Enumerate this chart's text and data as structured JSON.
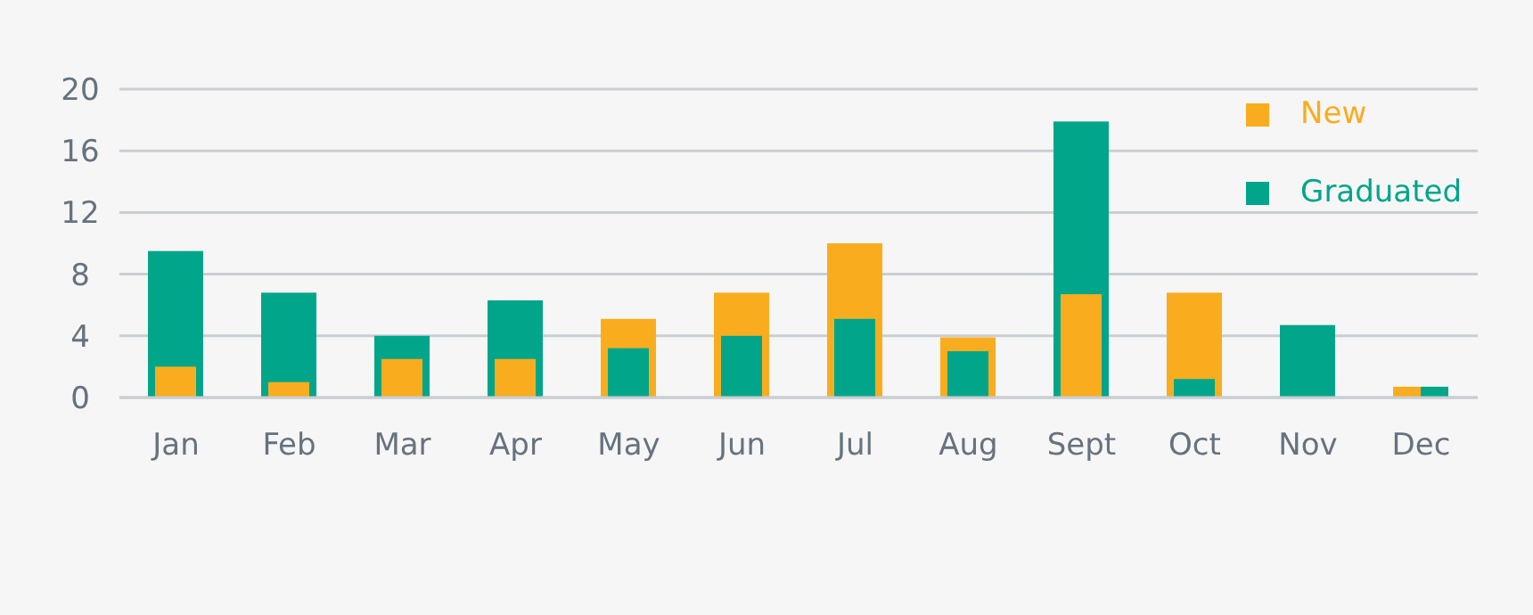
{
  "chart_data": {
    "type": "bar",
    "categories": [
      "Jan",
      "Feb",
      "Mar",
      "Apr",
      "May",
      "Jun",
      "Jul",
      "Aug",
      "Sept",
      "Oct",
      "Nov",
      "Dec"
    ],
    "series": [
      {
        "name": "New",
        "color": "#f9ad1e",
        "values": [
          2,
          1,
          2.5,
          2.5,
          5.1,
          6.8,
          10,
          3.9,
          6.7,
          6.8,
          null,
          0.7
        ]
      },
      {
        "name": "Graduated",
        "color": "#00a58a",
        "values": [
          9.5,
          6.8,
          4,
          6.3,
          3.2,
          4,
          5.1,
          3,
          17.9,
          1.2,
          4.7,
          0.7
        ]
      }
    ],
    "ylim": [
      0,
      20
    ],
    "yticks": [
      0,
      4,
      8,
      12,
      16,
      20
    ],
    "grid": "y",
    "legend": "top right"
  }
}
